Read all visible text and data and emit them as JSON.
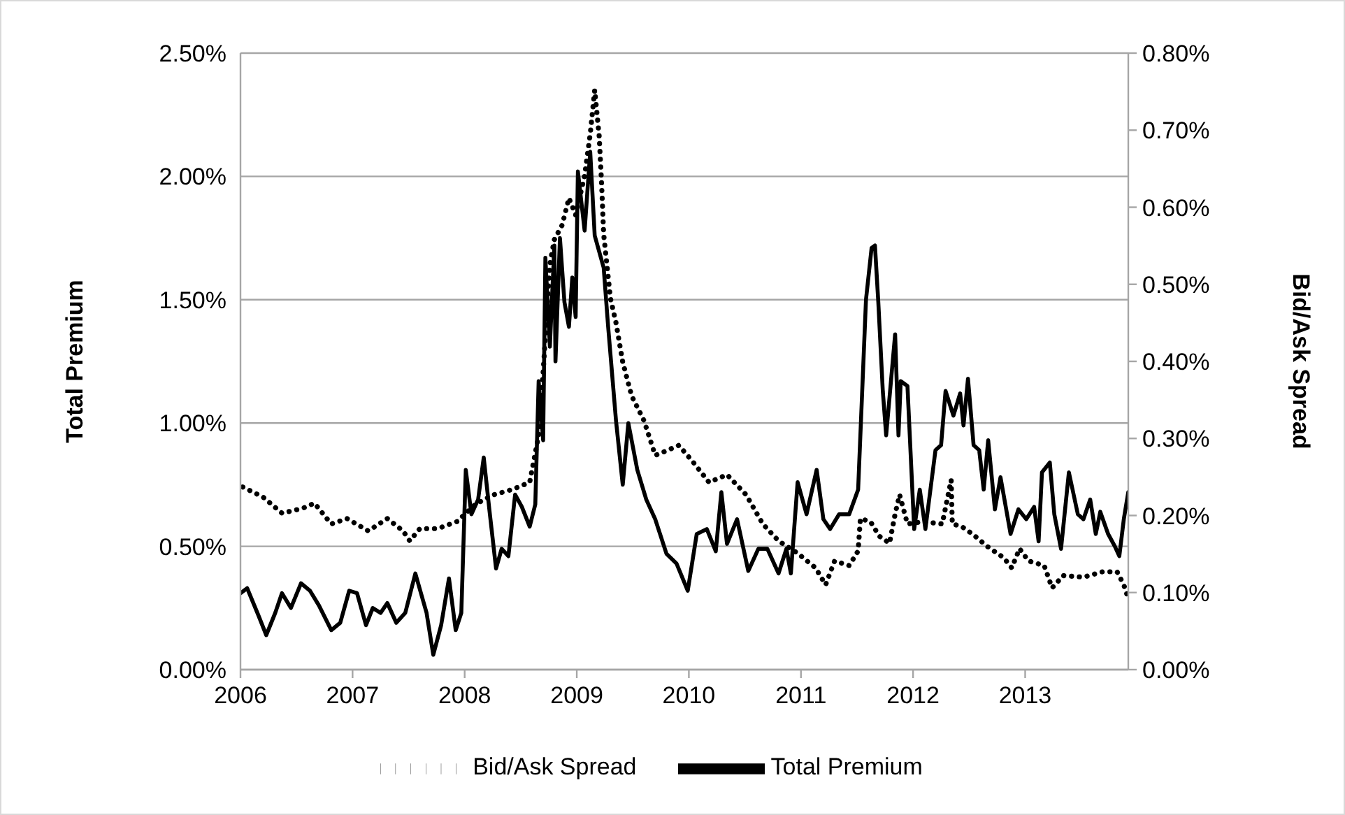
{
  "chart_data": {
    "type": "line",
    "ylabel": "Total Premium",
    "y2label": "Bid/Ask Spread",
    "xlim": [
      2006,
      2013.92
    ],
    "xticks": [
      2006,
      2007,
      2008,
      2009,
      2010,
      2011,
      2012,
      2013
    ],
    "ylim": [
      0,
      2.5
    ],
    "yticks": [
      {
        "value": 0,
        "label": "0.00%"
      },
      {
        "value": 0.5,
        "label": "0.50%"
      },
      {
        "value": 1,
        "label": "1.00%"
      },
      {
        "value": 1.5,
        "label": "1.50%"
      },
      {
        "value": 2,
        "label": "2.00%"
      },
      {
        "value": 2.5,
        "label": "2.50%"
      }
    ],
    "y2lim": [
      0,
      0.8
    ],
    "y2ticks": [
      {
        "value": 0,
        "label": "0.00%"
      },
      {
        "value": 0.1,
        "label": "0.10%"
      },
      {
        "value": 0.2,
        "label": "0.20%"
      },
      {
        "value": 0.3,
        "label": "0.30%"
      },
      {
        "value": 0.4,
        "label": "0.40%"
      },
      {
        "value": 0.5,
        "label": "0.50%"
      },
      {
        "value": 0.6,
        "label": "0.60%"
      },
      {
        "value": 0.7,
        "label": "0.70%"
      },
      {
        "value": 0.8,
        "label": "0.80%"
      }
    ],
    "grid": "y",
    "legend": "bottom",
    "series": [
      {
        "name": "Total Premium",
        "color": "#000000",
        "line_style": "solid",
        "x": [
          2006.0,
          2006.06,
          2006.16,
          2006.23,
          2006.31,
          2006.37,
          2006.45,
          2006.54,
          2006.62,
          2006.7,
          2006.81,
          2006.89,
          2006.97,
          2007.04,
          2007.12,
          2007.18,
          2007.25,
          2007.31,
          2007.39,
          2007.47,
          2007.56,
          2007.66,
          2007.72,
          2007.79,
          2007.86,
          2007.92,
          2007.97,
          2008.01,
          2008.06,
          2008.12,
          2008.17,
          2008.22,
          2008.28,
          2008.33,
          2008.39,
          2008.45,
          2008.51,
          2008.58,
          2008.63,
          2008.66,
          2008.7,
          2008.72,
          2008.76,
          2008.8,
          2008.81,
          2008.85,
          2008.89,
          2008.93,
          2008.96,
          2008.99,
          2009.01,
          2009.07,
          2009.12,
          2009.16,
          2009.24,
          2009.28,
          2009.35,
          2009.41,
          2009.46,
          2009.54,
          2009.62,
          2009.7,
          2009.8,
          2009.89,
          2009.99,
          2010.07,
          2010.16,
          2010.24,
          2010.29,
          2010.34,
          2010.43,
          2010.53,
          2010.62,
          2010.7,
          2010.8,
          2010.87,
          2010.91,
          2010.97,
          2011.05,
          2011.14,
          2011.2,
          2011.26,
          2011.34,
          2011.43,
          2011.51,
          2011.58,
          2011.63,
          2011.66,
          2011.69,
          2011.73,
          2011.76,
          2011.84,
          2011.87,
          2011.89,
          2011.95,
          2012.01,
          2012.06,
          2012.11,
          2012.2,
          2012.25,
          2012.29,
          2012.36,
          2012.42,
          2012.45,
          2012.49,
          2012.54,
          2012.59,
          2012.63,
          2012.67,
          2012.73,
          2012.78,
          2012.87,
          2012.94,
          2013.01,
          2013.08,
          2013.12,
          2013.15,
          2013.22,
          2013.26,
          2013.32,
          2013.39,
          2013.47,
          2013.52,
          2013.58,
          2013.63,
          2013.67,
          2013.74,
          2013.8,
          2013.84,
          2013.88,
          2013.92
        ],
        "values": [
          0.31,
          0.33,
          0.22,
          0.14,
          0.23,
          0.31,
          0.25,
          0.35,
          0.32,
          0.26,
          0.16,
          0.19,
          0.32,
          0.31,
          0.18,
          0.25,
          0.23,
          0.27,
          0.19,
          0.23,
          0.39,
          0.23,
          0.06,
          0.18,
          0.37,
          0.16,
          0.23,
          0.81,
          0.63,
          0.69,
          0.86,
          0.65,
          0.41,
          0.49,
          0.46,
          0.71,
          0.66,
          0.58,
          0.67,
          1.17,
          0.93,
          1.67,
          1.31,
          1.72,
          1.25,
          1.75,
          1.49,
          1.39,
          1.59,
          1.43,
          2.02,
          1.78,
          2.1,
          1.76,
          1.63,
          1.39,
          1.01,
          0.75,
          1.0,
          0.81,
          0.69,
          0.61,
          0.47,
          0.43,
          0.32,
          0.55,
          0.57,
          0.48,
          0.72,
          0.51,
          0.61,
          0.4,
          0.49,
          0.49,
          0.39,
          0.49,
          0.39,
          0.76,
          0.63,
          0.81,
          0.61,
          0.57,
          0.63,
          0.63,
          0.73,
          1.5,
          1.71,
          1.72,
          1.49,
          1.13,
          0.95,
          1.36,
          0.95,
          1.17,
          1.15,
          0.57,
          0.73,
          0.57,
          0.89,
          0.91,
          1.13,
          1.03,
          1.12,
          0.99,
          1.18,
          0.91,
          0.89,
          0.73,
          0.93,
          0.65,
          0.78,
          0.55,
          0.65,
          0.61,
          0.66,
          0.52,
          0.8,
          0.84,
          0.63,
          0.49,
          0.8,
          0.63,
          0.61,
          0.69,
          0.55,
          0.64,
          0.55,
          0.5,
          0.46,
          0.61,
          0.72
        ]
      },
      {
        "name": "Bid/Ask Spread",
        "color": "#000000",
        "line_style": "dotted",
        "axis": "y2",
        "x": [
          2006.02,
          2006.2,
          2006.37,
          2006.55,
          2006.66,
          2006.81,
          2006.95,
          2007.14,
          2007.31,
          2007.45,
          2007.51,
          2007.6,
          2007.76,
          2007.93,
          2008.1,
          2008.26,
          2008.43,
          2008.58,
          2008.66,
          2008.7,
          2008.76,
          2008.8,
          2008.87,
          2008.93,
          2008.99,
          2009.07,
          2009.12,
          2009.16,
          2009.2,
          2009.22,
          2009.24,
          2009.3,
          2009.35,
          2009.41,
          2009.49,
          2009.6,
          2009.7,
          2009.8,
          2009.91,
          2010.04,
          2010.18,
          2010.34,
          2010.51,
          2010.66,
          2010.8,
          2010.97,
          2011.13,
          2011.22,
          2011.3,
          2011.43,
          2011.51,
          2011.53,
          2011.62,
          2011.7,
          2011.79,
          2011.84,
          2011.88,
          2011.95,
          2012.09,
          2012.26,
          2012.34,
          2012.35,
          2012.43,
          2012.53,
          2012.66,
          2012.81,
          2012.88,
          2012.95,
          2013.03,
          2013.17,
          2013.24,
          2013.34,
          2013.52,
          2013.69,
          2013.82,
          2013.88,
          2013.92
        ],
        "values": [
          0.237,
          0.224,
          0.203,
          0.209,
          0.216,
          0.189,
          0.196,
          0.18,
          0.196,
          0.18,
          0.167,
          0.183,
          0.183,
          0.192,
          0.215,
          0.227,
          0.234,
          0.243,
          0.304,
          0.386,
          0.526,
          0.558,
          0.577,
          0.612,
          0.59,
          0.641,
          0.695,
          0.752,
          0.692,
          0.635,
          0.565,
          0.482,
          0.45,
          0.399,
          0.355,
          0.323,
          0.278,
          0.284,
          0.291,
          0.269,
          0.243,
          0.253,
          0.227,
          0.189,
          0.167,
          0.151,
          0.132,
          0.11,
          0.141,
          0.135,
          0.154,
          0.196,
          0.192,
          0.173,
          0.164,
          0.202,
          0.227,
          0.189,
          0.192,
          0.189,
          0.246,
          0.189,
          0.186,
          0.176,
          0.16,
          0.145,
          0.132,
          0.157,
          0.141,
          0.135,
          0.106,
          0.122,
          0.12,
          0.127,
          0.127,
          0.11,
          0.092
        ]
      }
    ]
  }
}
